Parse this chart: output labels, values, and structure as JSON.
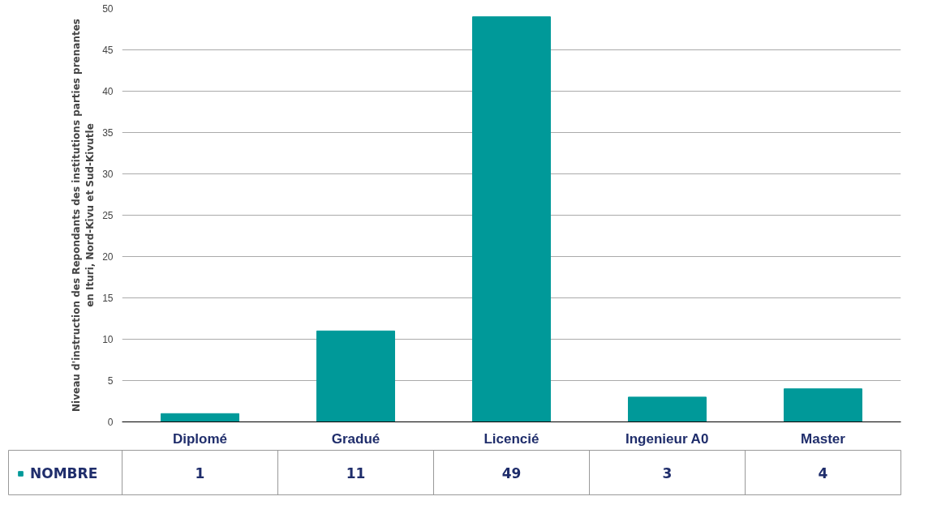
{
  "chart_data": {
    "type": "bar",
    "ylabel": "Niveau d'instruction des Repondants des institutions parties prenantes\nen Ituri, Nord-Kivu et Sud-Kivutle",
    "categories": [
      "Diplomé",
      "Gradué",
      "Licencié",
      "Ingenieur A0",
      "Master"
    ],
    "series": [
      {
        "name": "NOMBRE",
        "color": "#009999",
        "values": [
          1,
          11,
          49,
          3,
          4
        ]
      }
    ],
    "ylim": [
      0,
      50
    ],
    "yticks": [
      0,
      5,
      10,
      15,
      20,
      25,
      30,
      35,
      40,
      45,
      50
    ],
    "grid": "y",
    "data_labels": true,
    "legend": "bottom"
  }
}
